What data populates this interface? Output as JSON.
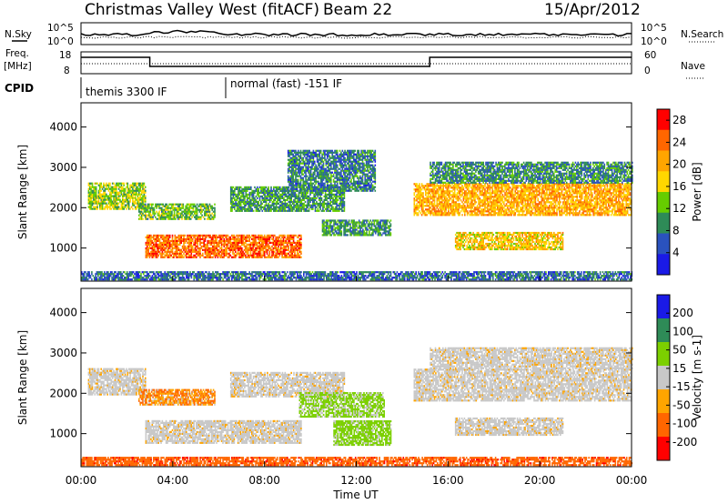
{
  "header": {
    "station": "Christmas Valley West (fitACF)",
    "beam": "Beam 22",
    "date": "15/Apr/2012"
  },
  "panels": {
    "nsky_label": "N.Sky",
    "nsearch_label": "N.Search",
    "freq_label_1": "Freq.",
    "freq_label_2": "[MHz]",
    "nave_label": "Nave",
    "cpid_label": "CPID",
    "nsky_ticks": [
      "10^5",
      "10^0"
    ],
    "nsearch_ticks": [
      "10^5",
      "10^0"
    ],
    "freq_ticks": [
      "18",
      "8"
    ],
    "nave_ticks": [
      "60",
      "0"
    ]
  },
  "cpid": {
    "segments": [
      {
        "label": "themis 3300 IF",
        "start_hour": 0.0
      },
      {
        "label": "normal (fast) -151 IF",
        "start_hour": 6.2
      }
    ]
  },
  "chart_data": [
    {
      "type": "heatmap",
      "name": "Power",
      "xlabel": "",
      "ylabel": "Slant Range [km]",
      "colorbar_label": "Power [dB]",
      "colorbar_ticks": [
        4,
        8,
        12,
        16,
        20,
        24,
        28
      ],
      "colorbar_range": [
        0,
        30
      ],
      "colors": [
        "#1a1ae6",
        "#2a52be",
        "#2e8b57",
        "#66cd00",
        "#ffd700",
        "#ffa500",
        "#ff6600",
        "#ff0000"
      ],
      "xlim": [
        0,
        24
      ],
      "ylim": [
        180,
        4600
      ],
      "yticks": [
        1000,
        2000,
        3000,
        4000
      ],
      "echo_regions": [
        {
          "t0": 0.3,
          "t1": 2.8,
          "r0": 1950,
          "r1": 2600,
          "level": 14
        },
        {
          "t0": 2.5,
          "t1": 5.8,
          "r0": 1700,
          "r1": 2100,
          "level": 12
        },
        {
          "t0": 2.8,
          "t1": 9.6,
          "r0": 750,
          "r1": 1300,
          "level": 24
        },
        {
          "t0": 6.5,
          "t1": 11.5,
          "r0": 1900,
          "r1": 2500,
          "level": 10
        },
        {
          "t0": 9.0,
          "t1": 12.8,
          "r0": 2400,
          "r1": 3400,
          "level": 8
        },
        {
          "t0": 10.5,
          "t1": 13.5,
          "r0": 1300,
          "r1": 1700,
          "level": 10
        },
        {
          "t0": 14.5,
          "t1": 24.0,
          "r0": 1800,
          "r1": 2600,
          "level": 20
        },
        {
          "t0": 15.2,
          "t1": 24.0,
          "r0": 2600,
          "r1": 3100,
          "level": 9
        },
        {
          "t0": 16.3,
          "t1": 21.0,
          "r0": 950,
          "r1": 1400,
          "level": 18
        },
        {
          "t0": 0.0,
          "t1": 24.0,
          "r0": 200,
          "r1": 420,
          "level": 7
        }
      ]
    },
    {
      "type": "heatmap",
      "name": "Velocity",
      "xlabel": "Time UT",
      "ylabel": "Slant Range [km]",
      "colorbar_label": "Velocity [m s-1]",
      "colorbar_ticks": [
        200,
        100,
        50,
        15,
        -15,
        -50,
        -100,
        -200
      ],
      "colors": [
        "#1a1ae6",
        "#2e8b57",
        "#7cd000",
        "#c8c8c8",
        "#ffa500",
        "#ff6600",
        "#ff0000"
      ],
      "xlim": [
        0,
        24
      ],
      "xticks": [
        "00:00",
        "04:00",
        "08:00",
        "12:00",
        "16:00",
        "20:00",
        "00:00"
      ],
      "ylim": [
        180,
        4600
      ],
      "yticks": [
        1000,
        2000,
        3000,
        4000
      ],
      "echo_regions": [
        {
          "t0": 0.3,
          "t1": 2.8,
          "r0": 1950,
          "r1": 2600,
          "vel": 0
        },
        {
          "t0": 2.5,
          "t1": 5.8,
          "r0": 1700,
          "r1": 2100,
          "vel": -30
        },
        {
          "t0": 2.8,
          "t1": 9.6,
          "r0": 750,
          "r1": 1300,
          "vel": 0
        },
        {
          "t0": 6.5,
          "t1": 11.5,
          "r0": 1900,
          "r1": 2500,
          "vel": 0
        },
        {
          "t0": 9.5,
          "t1": 13.2,
          "r0": 1400,
          "r1": 2000,
          "vel": 40
        },
        {
          "t0": 11.0,
          "t1": 13.5,
          "r0": 700,
          "r1": 1300,
          "vel": 45
        },
        {
          "t0": 14.5,
          "t1": 24.0,
          "r0": 1800,
          "r1": 2600,
          "vel": 0
        },
        {
          "t0": 15.2,
          "t1": 24.0,
          "r0": 2600,
          "r1": 3100,
          "vel": 0
        },
        {
          "t0": 16.3,
          "t1": 21.0,
          "r0": 950,
          "r1": 1400,
          "vel": 0
        },
        {
          "t0": 0.0,
          "t1": 24.0,
          "r0": 200,
          "r1": 420,
          "vel": -60
        }
      ]
    }
  ]
}
